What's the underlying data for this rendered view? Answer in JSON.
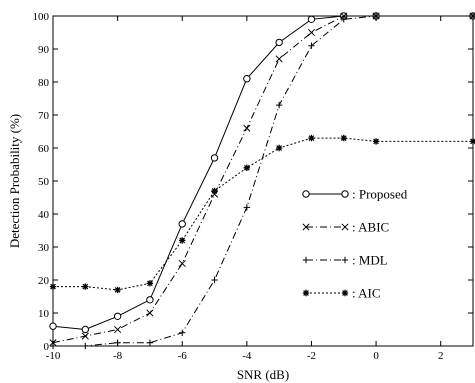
{
  "chart_data": {
    "type": "line",
    "title": "",
    "xlabel": "SNR (dB)",
    "ylabel": "Detection Probability (%)",
    "xlim": [
      -10,
      3
    ],
    "ylim": [
      0,
      100
    ],
    "xticks": [
      -10,
      -8,
      -6,
      -4,
      -2,
      0,
      2
    ],
    "yticks": [
      0,
      10,
      20,
      30,
      40,
      50,
      60,
      70,
      80,
      90,
      100
    ],
    "grid": false,
    "legend_position": "center-right",
    "x": [
      -10,
      -9,
      -8,
      -7,
      -6,
      -5,
      -4,
      -3,
      -2,
      -1,
      0,
      1,
      2,
      3
    ],
    "series": [
      {
        "name": ": Proposed",
        "marker": "circle",
        "line_style": "solid",
        "color": "#000000",
        "x": [
          -10,
          -9,
          -8,
          -7,
          -6,
          -5,
          -4,
          -3,
          -2,
          -1,
          0,
          3
        ],
        "values": [
          6,
          5,
          9,
          14,
          37,
          57,
          81,
          92,
          99,
          100,
          100,
          100
        ]
      },
      {
        "name": ": ABIC",
        "marker": "x",
        "line_style": "dashdot",
        "color": "#000000",
        "x": [
          -10,
          -9,
          -8,
          -7,
          -6,
          -5,
          -4,
          -3,
          -2,
          -1,
          0,
          3
        ],
        "values": [
          1,
          3,
          5,
          10,
          25,
          46,
          66,
          87,
          95,
          100,
          100,
          100
        ]
      },
      {
        "name": ": MDL",
        "marker": "plus",
        "line_style": "dashdot",
        "color": "#000000",
        "x": [
          -10,
          -9,
          -8,
          -7,
          -6,
          -5,
          -4,
          -3,
          -2,
          -1,
          0,
          3
        ],
        "values": [
          0,
          0,
          1,
          1,
          4,
          20,
          42,
          73,
          91,
          99,
          100,
          100
        ]
      },
      {
        "name": ": AIC",
        "marker": "asterisk",
        "line_style": "dotted",
        "color": "#000000",
        "x": [
          -10,
          -9,
          -8,
          -7,
          -6,
          -5,
          -4,
          -3,
          -2,
          -1,
          0,
          3
        ],
        "values": [
          18,
          18,
          17,
          19,
          32,
          47,
          54,
          60,
          63,
          63,
          62,
          62
        ]
      }
    ]
  }
}
